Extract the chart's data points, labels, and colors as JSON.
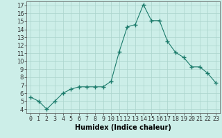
{
  "x": [
    0,
    1,
    2,
    3,
    4,
    5,
    6,
    7,
    8,
    9,
    10,
    11,
    12,
    13,
    14,
    15,
    16,
    17,
    18,
    19,
    20,
    21,
    22,
    23
  ],
  "y": [
    5.5,
    5.0,
    4.0,
    5.0,
    6.0,
    6.5,
    6.8,
    6.8,
    6.8,
    6.8,
    7.5,
    11.2,
    14.3,
    14.6,
    17.1,
    15.1,
    15.1,
    12.5,
    11.1,
    10.5,
    9.3,
    9.3,
    8.5,
    7.3
  ],
  "line_color": "#1a7a6a",
  "marker": "+",
  "marker_size": 4,
  "bg_color": "#cceee8",
  "grid_color": "#aad4cc",
  "xlabel": "Humidex (Indice chaleur)",
  "xlabel_fontsize": 7,
  "tick_fontsize": 6,
  "xlim": [
    -0.5,
    23.5
  ],
  "ylim": [
    3.5,
    17.5
  ],
  "yticks": [
    4,
    5,
    6,
    7,
    8,
    9,
    10,
    11,
    12,
    13,
    14,
    15,
    16,
    17
  ],
  "xticks": [
    0,
    1,
    2,
    3,
    4,
    5,
    6,
    7,
    8,
    9,
    10,
    11,
    12,
    13,
    14,
    15,
    16,
    17,
    18,
    19,
    20,
    21,
    22,
    23
  ]
}
